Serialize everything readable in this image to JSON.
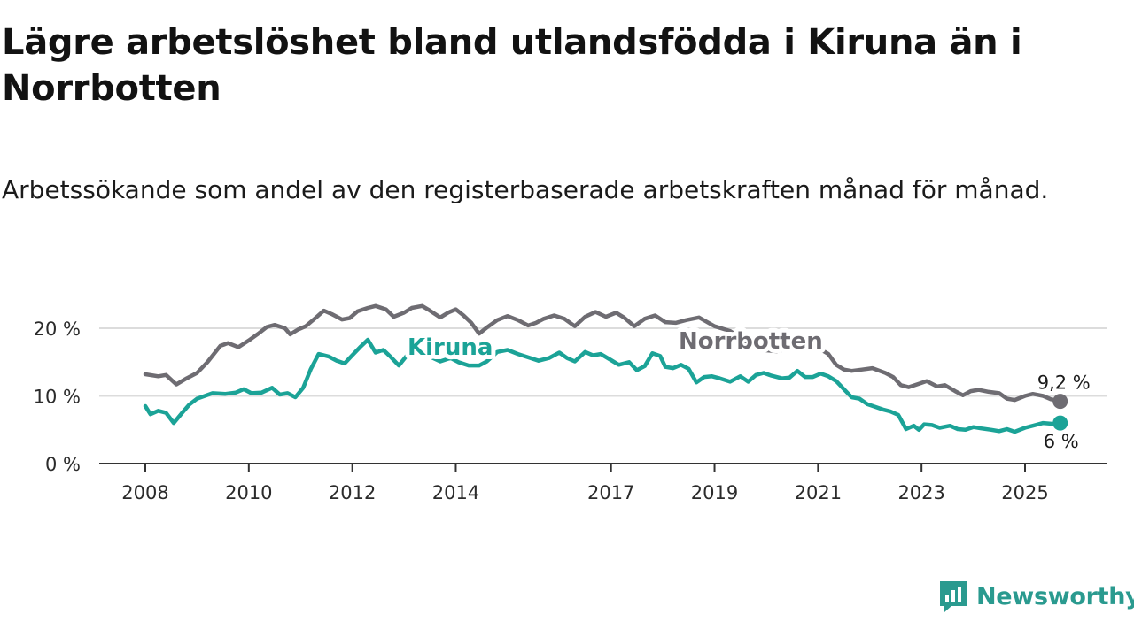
{
  "title": "Lägre arbetslöshet bland utlandsfödda i Kiruna än i Norrbotten",
  "subtitle": "Arbetssökande som andel av den registerbaserade arbetskraften månad för månad.",
  "brand": {
    "name": "Newsworthy",
    "logo_icon": "chart-logo-icon",
    "color": "#2a9a8f"
  },
  "chart_data": {
    "type": "line",
    "title": "Lägre arbetslöshet bland utlandsfödda i Kiruna än i Norrbotten",
    "xlabel": "",
    "ylabel": "",
    "xlim": [
      2007.75,
      2026.1
    ],
    "ylim": [
      0,
      20
    ],
    "grid": true,
    "x_ticks": [
      {
        "value": 2008,
        "label": "2008"
      },
      {
        "value": 2010,
        "label": "2010"
      },
      {
        "value": 2012,
        "label": "2012"
      },
      {
        "value": 2014,
        "label": "2014"
      },
      {
        "value": 2017,
        "label": "2017"
      },
      {
        "value": 2019,
        "label": "2019"
      },
      {
        "value": 2021,
        "label": "2021"
      },
      {
        "value": 2023,
        "label": "2023"
      },
      {
        "value": 2025,
        "label": "2025"
      }
    ],
    "y_ticks": [
      {
        "value": 0,
        "label": "0 %"
      },
      {
        "value": 10,
        "label": "10 %"
      },
      {
        "value": 20,
        "label": "20 %"
      }
    ],
    "series": [
      {
        "name": "Norrbotten",
        "color": "#6e6c72",
        "label": "Norrbotten",
        "end_label": "9,2 %",
        "points": [
          [
            2008.0,
            13.2
          ],
          [
            2008.25,
            12.9
          ],
          [
            2008.4,
            13.1
          ],
          [
            2008.6,
            11.7
          ],
          [
            2008.8,
            12.6
          ],
          [
            2009.0,
            13.4
          ],
          [
            2009.2,
            15.0
          ],
          [
            2009.45,
            17.4
          ],
          [
            2009.6,
            17.8
          ],
          [
            2009.8,
            17.2
          ],
          [
            2010.0,
            18.2
          ],
          [
            2010.2,
            19.3
          ],
          [
            2010.35,
            20.2
          ],
          [
            2010.5,
            20.5
          ],
          [
            2010.7,
            20.0
          ],
          [
            2010.8,
            19.1
          ],
          [
            2010.95,
            19.8
          ],
          [
            2011.1,
            20.3
          ],
          [
            2011.3,
            21.6
          ],
          [
            2011.45,
            22.6
          ],
          [
            2011.6,
            22.1
          ],
          [
            2011.8,
            21.3
          ],
          [
            2011.95,
            21.5
          ],
          [
            2012.1,
            22.5
          ],
          [
            2012.3,
            23.0
          ],
          [
            2012.45,
            23.3
          ],
          [
            2012.65,
            22.8
          ],
          [
            2012.8,
            21.7
          ],
          [
            2013.0,
            22.3
          ],
          [
            2013.15,
            23.0
          ],
          [
            2013.35,
            23.3
          ],
          [
            2013.5,
            22.6
          ],
          [
            2013.7,
            21.6
          ],
          [
            2013.85,
            22.3
          ],
          [
            2014.0,
            22.8
          ],
          [
            2014.15,
            21.9
          ],
          [
            2014.3,
            20.8
          ],
          [
            2014.45,
            19.2
          ],
          [
            2014.6,
            20.1
          ],
          [
            2014.8,
            21.2
          ],
          [
            2015.0,
            21.8
          ],
          [
            2015.2,
            21.2
          ],
          [
            2015.4,
            20.4
          ],
          [
            2015.55,
            20.8
          ],
          [
            2015.7,
            21.4
          ],
          [
            2015.9,
            21.9
          ],
          [
            2016.1,
            21.4
          ],
          [
            2016.3,
            20.3
          ],
          [
            2016.5,
            21.7
          ],
          [
            2016.7,
            22.4
          ],
          [
            2016.9,
            21.7
          ],
          [
            2017.1,
            22.3
          ],
          [
            2017.25,
            21.6
          ],
          [
            2017.45,
            20.3
          ],
          [
            2017.65,
            21.4
          ],
          [
            2017.85,
            21.9
          ],
          [
            2018.05,
            20.9
          ],
          [
            2018.25,
            20.8
          ],
          [
            2018.45,
            21.2
          ],
          [
            2018.7,
            21.6
          ],
          [
            2019.0,
            20.3
          ],
          [
            2019.3,
            19.6
          ],
          [
            2019.6,
            18.1
          ],
          [
            2019.9,
            16.8
          ],
          [
            2020.2,
            16.6
          ],
          [
            2020.5,
            17.1
          ],
          [
            2020.8,
            16.8
          ],
          [
            2021.0,
            17.1
          ],
          [
            2021.2,
            16.2
          ],
          [
            2021.35,
            14.6
          ],
          [
            2021.5,
            13.9
          ],
          [
            2021.65,
            13.7
          ],
          [
            2021.85,
            13.9
          ],
          [
            2022.05,
            14.1
          ],
          [
            2022.3,
            13.4
          ],
          [
            2022.45,
            12.8
          ],
          [
            2022.6,
            11.6
          ],
          [
            2022.75,
            11.3
          ],
          [
            2022.95,
            11.8
          ],
          [
            2023.1,
            12.2
          ],
          [
            2023.3,
            11.4
          ],
          [
            2023.45,
            11.6
          ],
          [
            2023.65,
            10.7
          ],
          [
            2023.8,
            10.1
          ],
          [
            2023.95,
            10.7
          ],
          [
            2024.1,
            10.9
          ],
          [
            2024.3,
            10.6
          ],
          [
            2024.5,
            10.4
          ],
          [
            2024.65,
            9.6
          ],
          [
            2024.8,
            9.4
          ],
          [
            2025.0,
            10.0
          ],
          [
            2025.15,
            10.3
          ],
          [
            2025.35,
            10.0
          ],
          [
            2025.5,
            9.5
          ],
          [
            2025.65,
            9.3
          ],
          [
            2025.68,
            9.2
          ]
        ]
      },
      {
        "name": "Kiruna",
        "color": "#1ba397",
        "label": "Kiruna",
        "end_label": "6 %",
        "points": [
          [
            2008.0,
            8.5
          ],
          [
            2008.1,
            7.3
          ],
          [
            2008.25,
            7.8
          ],
          [
            2008.4,
            7.5
          ],
          [
            2008.55,
            6.0
          ],
          [
            2008.7,
            7.4
          ],
          [
            2008.85,
            8.7
          ],
          [
            2009.0,
            9.6
          ],
          [
            2009.15,
            10.0
          ],
          [
            2009.3,
            10.4
          ],
          [
            2009.55,
            10.3
          ],
          [
            2009.75,
            10.5
          ],
          [
            2009.9,
            11.0
          ],
          [
            2010.05,
            10.4
          ],
          [
            2010.25,
            10.5
          ],
          [
            2010.45,
            11.2
          ],
          [
            2010.6,
            10.2
          ],
          [
            2010.75,
            10.4
          ],
          [
            2010.9,
            9.8
          ],
          [
            2011.05,
            11.2
          ],
          [
            2011.2,
            14.0
          ],
          [
            2011.35,
            16.2
          ],
          [
            2011.55,
            15.8
          ],
          [
            2011.7,
            15.2
          ],
          [
            2011.85,
            14.8
          ],
          [
            2012.0,
            16.0
          ],
          [
            2012.15,
            17.2
          ],
          [
            2012.3,
            18.3
          ],
          [
            2012.45,
            16.4
          ],
          [
            2012.6,
            16.8
          ],
          [
            2012.75,
            15.7
          ],
          [
            2012.9,
            14.5
          ],
          [
            2013.1,
            16.4
          ],
          [
            2013.3,
            16.0
          ],
          [
            2013.5,
            15.8
          ],
          [
            2013.7,
            15.1
          ],
          [
            2013.9,
            15.6
          ],
          [
            2014.05,
            15.0
          ],
          [
            2014.25,
            14.5
          ],
          [
            2014.45,
            14.5
          ],
          [
            2014.6,
            15.1
          ],
          [
            2014.8,
            16.5
          ],
          [
            2015.0,
            16.8
          ],
          [
            2015.2,
            16.2
          ],
          [
            2015.4,
            15.7
          ],
          [
            2015.6,
            15.2
          ],
          [
            2015.8,
            15.6
          ],
          [
            2016.0,
            16.4
          ],
          [
            2016.15,
            15.6
          ],
          [
            2016.3,
            15.1
          ],
          [
            2016.5,
            16.5
          ],
          [
            2016.65,
            16.0
          ],
          [
            2016.8,
            16.2
          ],
          [
            2017.0,
            15.3
          ],
          [
            2017.15,
            14.6
          ],
          [
            2017.35,
            15.0
          ],
          [
            2017.5,
            13.8
          ],
          [
            2017.65,
            14.4
          ],
          [
            2017.8,
            16.3
          ],
          [
            2017.95,
            15.9
          ],
          [
            2018.05,
            14.3
          ],
          [
            2018.2,
            14.1
          ],
          [
            2018.35,
            14.6
          ],
          [
            2018.5,
            14.0
          ],
          [
            2018.65,
            12.0
          ],
          [
            2018.8,
            12.8
          ],
          [
            2018.95,
            12.9
          ],
          [
            2019.1,
            12.6
          ],
          [
            2019.3,
            12.1
          ],
          [
            2019.5,
            12.9
          ],
          [
            2019.65,
            12.1
          ],
          [
            2019.8,
            13.1
          ],
          [
            2019.95,
            13.4
          ],
          [
            2020.1,
            13.0
          ],
          [
            2020.3,
            12.6
          ],
          [
            2020.45,
            12.7
          ],
          [
            2020.6,
            13.7
          ],
          [
            2020.75,
            12.8
          ],
          [
            2020.9,
            12.8
          ],
          [
            2021.05,
            13.3
          ],
          [
            2021.2,
            12.9
          ],
          [
            2021.35,
            12.2
          ],
          [
            2021.5,
            11.0
          ],
          [
            2021.65,
            9.8
          ],
          [
            2021.8,
            9.6
          ],
          [
            2021.95,
            8.8
          ],
          [
            2022.1,
            8.4
          ],
          [
            2022.25,
            8.0
          ],
          [
            2022.4,
            7.7
          ],
          [
            2022.55,
            7.2
          ],
          [
            2022.7,
            5.1
          ],
          [
            2022.85,
            5.6
          ],
          [
            2022.95,
            5.0
          ],
          [
            2023.05,
            5.8
          ],
          [
            2023.2,
            5.7
          ],
          [
            2023.35,
            5.3
          ],
          [
            2023.55,
            5.6
          ],
          [
            2023.7,
            5.1
          ],
          [
            2023.85,
            5.0
          ],
          [
            2024.0,
            5.4
          ],
          [
            2024.15,
            5.2
          ],
          [
            2024.35,
            5.0
          ],
          [
            2024.5,
            4.8
          ],
          [
            2024.65,
            5.1
          ],
          [
            2024.8,
            4.7
          ],
          [
            2025.0,
            5.3
          ],
          [
            2025.2,
            5.7
          ],
          [
            2025.35,
            6.0
          ],
          [
            2025.5,
            5.9
          ],
          [
            2025.6,
            5.8
          ],
          [
            2025.68,
            6.0
          ]
        ]
      }
    ]
  }
}
